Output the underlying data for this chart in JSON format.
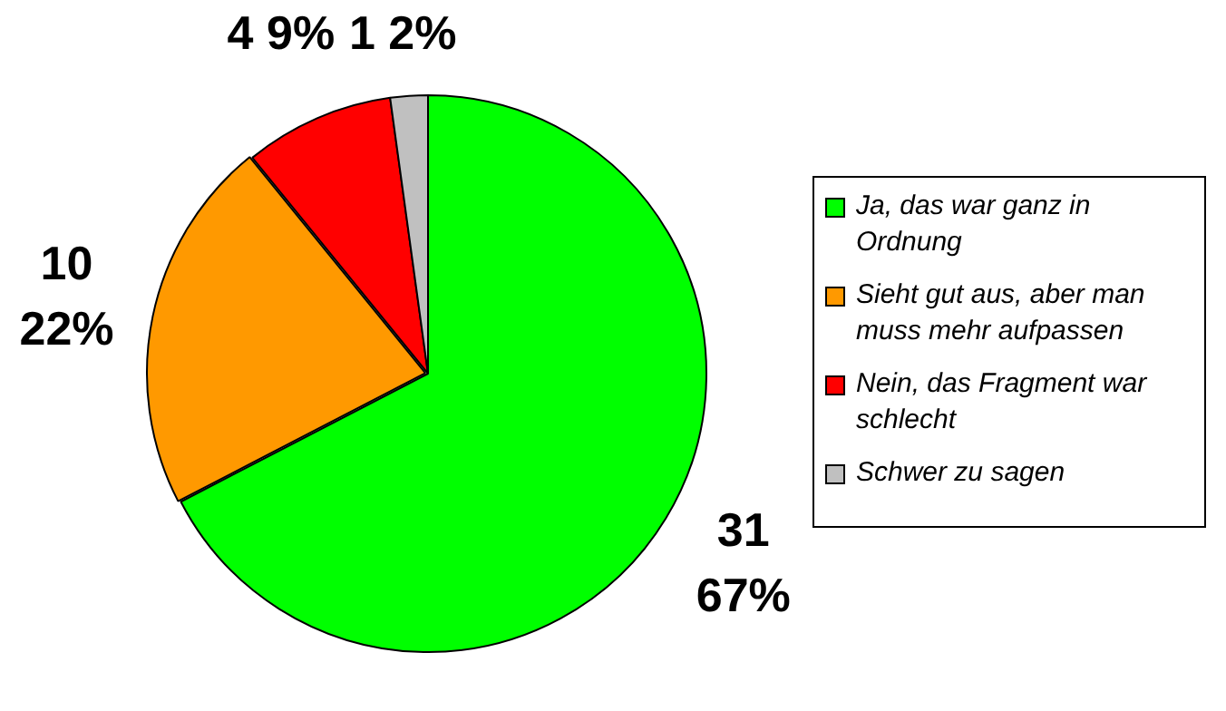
{
  "chart_data": {
    "type": "pie",
    "categories": [
      "Ja, das war ganz in Ordnung",
      "Sieht gut aus, aber man muss mehr aufpassen",
      "Nein, das Fragment war schlecht",
      "Schwer zu sagen"
    ],
    "values": [
      31,
      10,
      4,
      1
    ],
    "colors": [
      "#00ff00",
      "#ff9900",
      "#ff0000",
      "#c0c0c0"
    ],
    "value_labels": [
      "31\n67%",
      "10\n22%",
      "4 9%",
      "1 2%"
    ],
    "legend": "right"
  }
}
